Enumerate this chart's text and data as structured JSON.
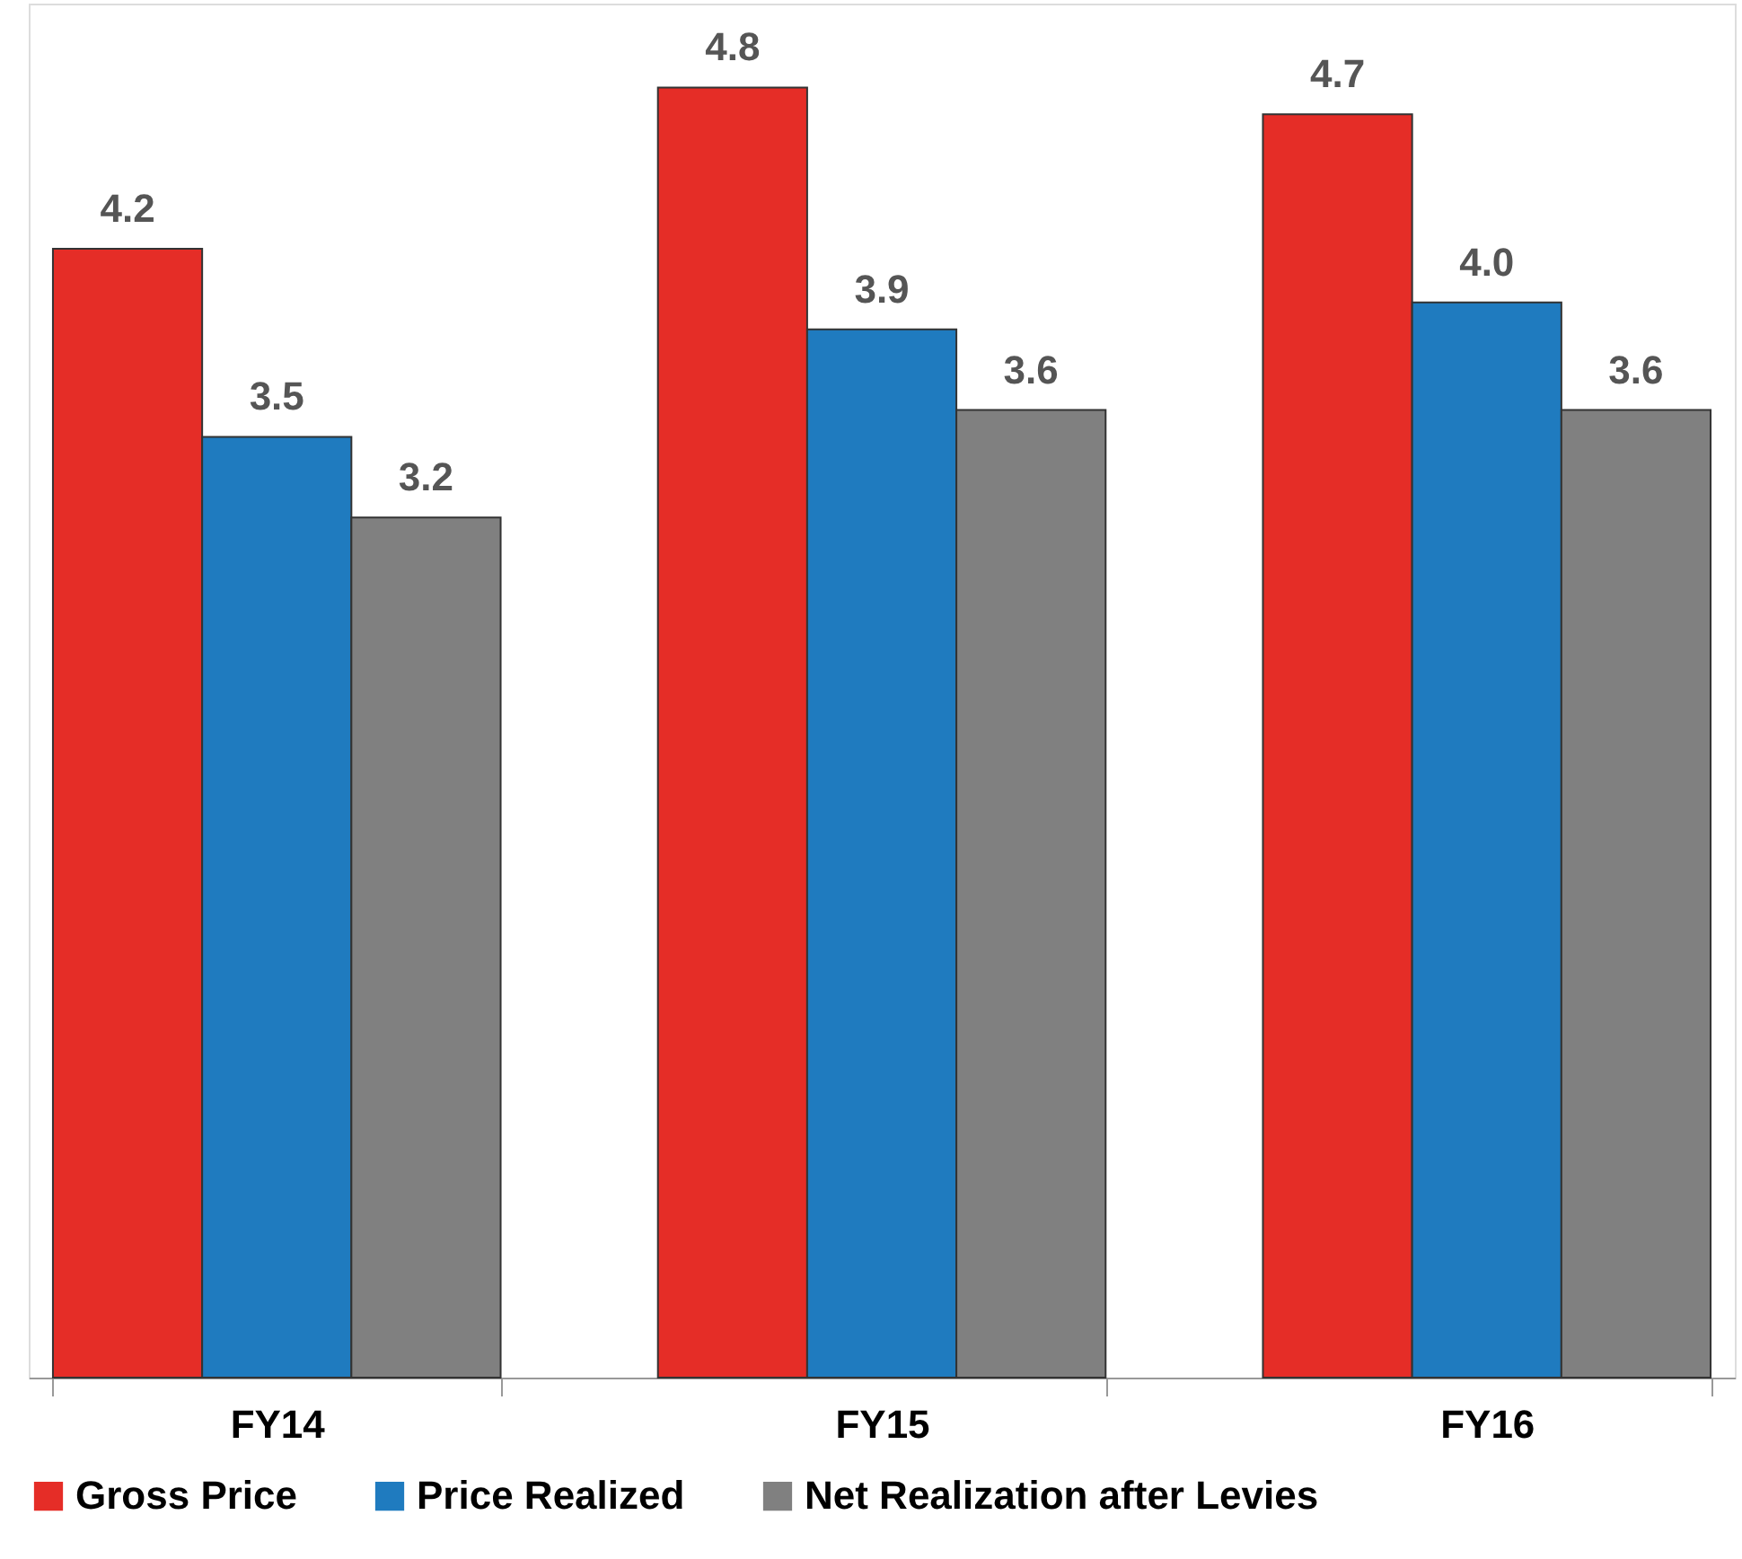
{
  "chart_data": {
    "type": "bar",
    "categories": [
      "FY14",
      "FY15",
      "FY16"
    ],
    "series": [
      {
        "name": "Gross Price",
        "color": "#e52d27",
        "values": [
          4.2,
          4.8,
          4.7
        ],
        "value_labels": [
          "4.2",
          "4.8",
          "4.7"
        ]
      },
      {
        "name": "Price Realized",
        "color": "#1f7bbf",
        "values": [
          3.5,
          3.9,
          4.0
        ],
        "value_labels": [
          "3.5",
          "3.9",
          "4.0"
        ]
      },
      {
        "name": "Net Realization after Levies",
        "color": "#808080",
        "values": [
          3.2,
          3.6,
          3.6
        ],
        "value_labels": [
          "3.2",
          "3.6",
          "3.6"
        ]
      }
    ],
    "legend": "bottom",
    "grid": false
  }
}
